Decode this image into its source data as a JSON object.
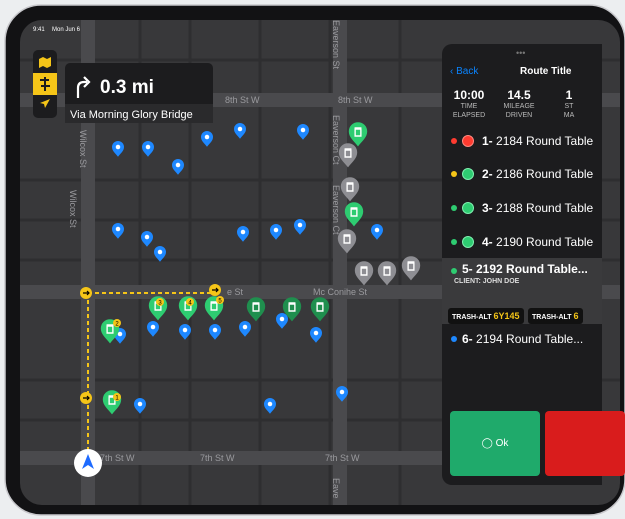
{
  "status_bar": {
    "time": "9:41",
    "date": "Mon Jun 6"
  },
  "navigation": {
    "distance": "0.3 mi",
    "via": "Via Morning Glory Bridge"
  },
  "map": {
    "streets": [
      "8th St W",
      "8th St W",
      "Wilcox St",
      "Wilcox St",
      "Eaverson St",
      "Eaverson Ct",
      "Eaverson Ct",
      "Mc Conihe St",
      "e St",
      "7th St W",
      "7th St W",
      "7th St W",
      "Eave"
    ],
    "stop_badges": [
      "2",
      "3",
      "4",
      "5",
      "1"
    ]
  },
  "panel": {
    "back": "Back",
    "title": "Route Title",
    "stats": [
      {
        "value": "10:00",
        "label1": "TIME",
        "label2": "ELAPSED"
      },
      {
        "value": "14.5",
        "label1": "MILEAGE",
        "label2": "DRIVEN"
      },
      {
        "value": "1",
        "label1": "ST",
        "label2": "MA"
      }
    ],
    "stops": [
      {
        "num": "1-",
        "address": "2184 Round Table"
      },
      {
        "num": "2-",
        "address": "2186 Round Table"
      },
      {
        "num": "3-",
        "address": "2188 Round Table"
      },
      {
        "num": "4-",
        "address": "2190 Round Table"
      },
      {
        "num": "5- 2192 Round Table...",
        "client": "CLIENT: JOHN DOE",
        "tags": [
          {
            "type": "TRASH-ALT",
            "code": "6Y145"
          },
          {
            "type": "TRASH-ALT",
            "code": "6"
          }
        ]
      },
      {
        "num": "6-",
        "address": "2194 Round Table..."
      }
    ],
    "ok": "Ok"
  }
}
